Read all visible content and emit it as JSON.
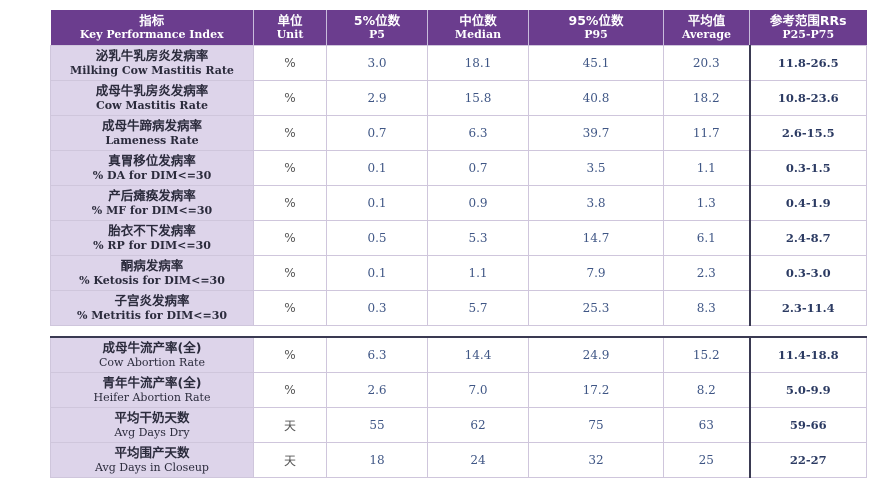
{
  "header": {
    "kpi_zh": "指标",
    "kpi_en": "Key Performance Index",
    "unit_zh": "单位",
    "unit_en": "Unit",
    "p5_zh": "5%位数",
    "p5_en": "P5",
    "median_zh": "中位数",
    "median_en": "Median",
    "p95_zh": "95%位数",
    "p95_en": "P95",
    "avg_zh": "平均值",
    "avg_en": "Average",
    "ref_zh": "参考范围RRs",
    "ref_en": "P25-P75"
  },
  "section1": [
    {
      "zh": "泌乳牛乳房炎发病率",
      "en": "Milking Cow Mastitis Rate",
      "unit": "%",
      "p5": "3.0",
      "median": "18.1",
      "p95": "45.1",
      "avg": "20.3",
      "ref": "11.8-26.5"
    },
    {
      "zh": "成母牛乳房炎发病率",
      "en": "Cow Mastitis Rate",
      "unit": "%",
      "p5": "2.9",
      "median": "15.8",
      "p95": "40.8",
      "avg": "18.2",
      "ref": "10.8-23.6"
    },
    {
      "zh": "成母牛蹄病发病率",
      "en": "Lameness Rate",
      "unit": "%",
      "p5": "0.7",
      "median": "6.3",
      "p95": "39.7",
      "avg": "11.7",
      "ref": "2.6-15.5"
    },
    {
      "zh": "真胃移位发病率",
      "en": "% DA for DIM<=30",
      "unit": "%",
      "p5": "0.1",
      "median": "0.7",
      "p95": "3.5",
      "avg": "1.1",
      "ref": "0.3-1.5"
    },
    {
      "zh": "产后瘫痪发病率",
      "en": "% MF for DIM<=30",
      "unit": "%",
      "p5": "0.1",
      "median": "0.9",
      "p95": "3.8",
      "avg": "1.3",
      "ref": "0.4-1.9"
    },
    {
      "zh": "胎衣不下发病率",
      "en": "% RP for DIM<=30",
      "unit": "%",
      "p5": "0.5",
      "median": "5.3",
      "p95": "14.7",
      "avg": "6.1",
      "ref": "2.4-8.7"
    },
    {
      "zh": "酮病发病率",
      "en": "% Ketosis for DIM<=30",
      "unit": "%",
      "p5": "0.1",
      "median": "1.1",
      "p95": "7.9",
      "avg": "2.3",
      "ref": "0.3-3.0"
    },
    {
      "zh": "子宫炎发病率",
      "en": "% Metritis for DIM<=30",
      "unit": "%",
      "p5": "0.3",
      "median": "5.7",
      "p95": "25.3",
      "avg": "8.3",
      "ref": "2.3-11.4"
    }
  ],
  "section2": [
    {
      "zh": "成母牛流产率(全)",
      "en": "Cow Abortion Rate",
      "unit": "%",
      "p5": "6.3",
      "median": "14.4",
      "p95": "24.9",
      "avg": "15.2",
      "ref": "11.4-18.8"
    },
    {
      "zh": "青年牛流产率(全)",
      "en": "Heifer Abortion Rate",
      "unit": "%",
      "p5": "2.6",
      "median": "7.0",
      "p95": "17.2",
      "avg": "8.2",
      "ref": "5.0-9.9"
    },
    {
      "zh": "平均干奶天数",
      "en": "Avg Days Dry",
      "unit": "天",
      "p5": "55",
      "median": "62",
      "p95": "75",
      "avg": "63",
      "ref": "59-66"
    },
    {
      "zh": "平均围产天数",
      "en": "Avg Days in Closeup",
      "unit": "天",
      "p5": "18",
      "median": "24",
      "p95": "32",
      "avg": "25",
      "ref": "22-27"
    }
  ]
}
